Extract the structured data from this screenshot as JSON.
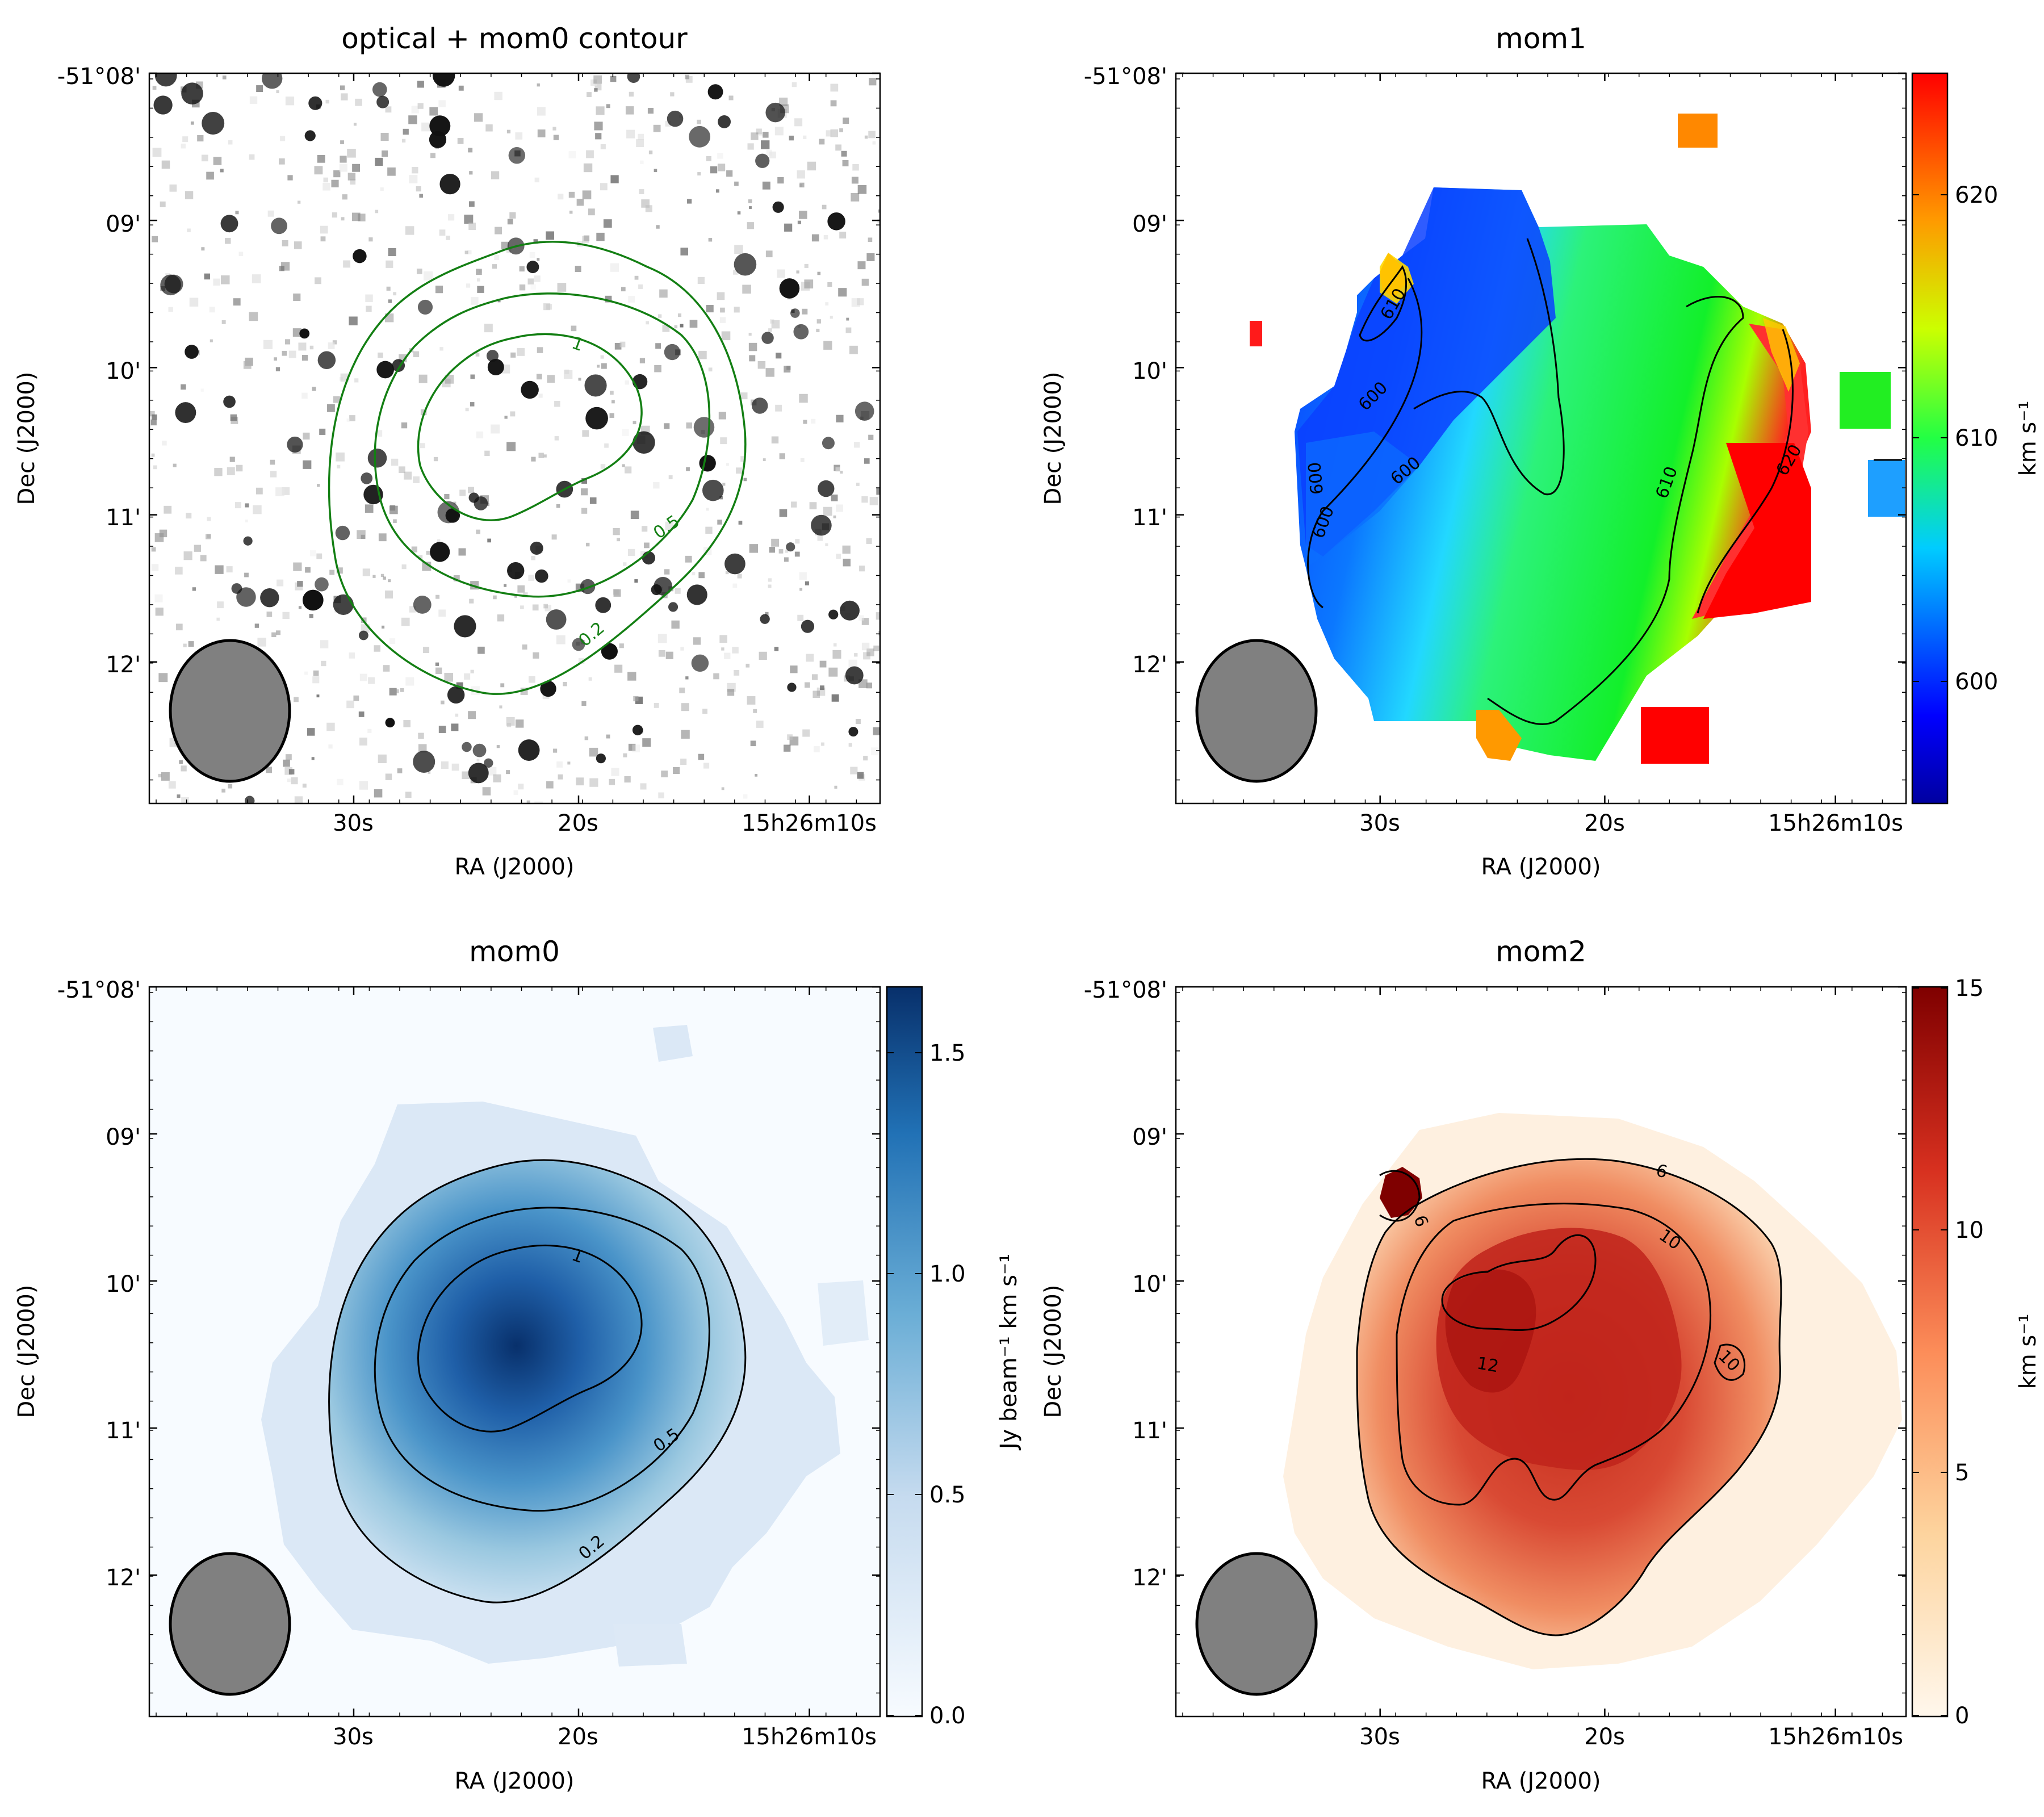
{
  "panels": [
    {
      "key": "optical",
      "title": "optical + mom0 contour",
      "xlabel": "RA (J2000)",
      "ylabel": "Dec (J2000)",
      "xticks": [
        "30s",
        "20s",
        "15h26m10s"
      ],
      "yticks": [
        "-51°08'",
        "09'",
        "10'",
        "11'",
        "12'"
      ],
      "contour_labels": [
        "1",
        "0.5",
        "0.2"
      ]
    },
    {
      "key": "mom1",
      "title": "mom1",
      "xlabel": "RA (J2000)",
      "ylabel": "Dec (J2000)",
      "xticks": [
        "30s",
        "20s",
        "15h26m10s"
      ],
      "yticks": [
        "-51°08'",
        "09'",
        "10'",
        "11'",
        "12'"
      ],
      "colorbar_label": "km s⁻¹",
      "colorbar_ticks": [
        "600",
        "610",
        "620"
      ],
      "contour_labels": [
        "610",
        "600",
        "600",
        "600",
        "600",
        "610",
        "620"
      ]
    },
    {
      "key": "mom0",
      "title": "mom0",
      "xlabel": "RA (J2000)",
      "ylabel": "Dec (J2000)",
      "xticks": [
        "30s",
        "20s",
        "15h26m10s"
      ],
      "yticks": [
        "-51°08'",
        "09'",
        "10'",
        "11'",
        "12'"
      ],
      "colorbar_label": "Jy beam⁻¹ km s⁻¹",
      "colorbar_ticks": [
        "0.0",
        "0.5",
        "1.0",
        "1.5"
      ],
      "contour_labels": [
        "1",
        "0.5",
        "0.2"
      ]
    },
    {
      "key": "mom2",
      "title": "mom2",
      "xlabel": "RA (J2000)",
      "ylabel": "Dec (J2000)",
      "xticks": [
        "30s",
        "20s",
        "15h26m10s"
      ],
      "yticks": [
        "-51°08'",
        "09'",
        "10'",
        "11'",
        "12'"
      ],
      "colorbar_label": "km s⁻¹",
      "colorbar_ticks": [
        "0",
        "5",
        "10",
        "15"
      ],
      "contour_labels": [
        "6",
        "10",
        "12",
        "10",
        "6"
      ]
    }
  ],
  "chart_data": [
    {
      "type": "heatmap",
      "title": "optical + mom0 contour",
      "xlabel": "RA (J2000)",
      "ylabel": "Dec (J2000)",
      "x_tick_labels": [
        "30s",
        "20s",
        "15h26m10s"
      ],
      "y_tick_labels": [
        "-51°08'",
        "09'",
        "10'",
        "11'",
        "12'"
      ],
      "contour_levels": [
        0.2,
        0.5,
        1
      ],
      "contour_color": "#137f13",
      "colormap": "gray_r"
    },
    {
      "type": "heatmap",
      "title": "mom1",
      "xlabel": "RA (J2000)",
      "ylabel": "Dec (J2000)",
      "x_tick_labels": [
        "30s",
        "20s",
        "15h26m10s"
      ],
      "y_tick_labels": [
        "-51°08'",
        "09'",
        "10'",
        "11'",
        "12'"
      ],
      "colorbar_label": "km s⁻¹",
      "colorbar_ticks": [
        600,
        610,
        620
      ],
      "colorbar_range": [
        595,
        625
      ],
      "contour_levels": [
        600,
        610,
        620
      ],
      "colormap": "jet"
    },
    {
      "type": "heatmap",
      "title": "mom0",
      "xlabel": "RA (J2000)",
      "ylabel": "Dec (J2000)",
      "x_tick_labels": [
        "30s",
        "20s",
        "15h26m10s"
      ],
      "y_tick_labels": [
        "-51°08'",
        "09'",
        "10'",
        "11'",
        "12'"
      ],
      "colorbar_label": "Jy beam⁻¹ km s⁻¹",
      "colorbar_ticks": [
        0.0,
        0.5,
        1.0,
        1.5
      ],
      "colorbar_range": [
        0.0,
        1.65
      ],
      "contour_levels": [
        0.2,
        0.5,
        1
      ],
      "colormap": "Blues"
    },
    {
      "type": "heatmap",
      "title": "mom2",
      "xlabel": "RA (J2000)",
      "ylabel": "Dec (J2000)",
      "x_tick_labels": [
        "30s",
        "20s",
        "15h26m10s"
      ],
      "y_tick_labels": [
        "-51°08'",
        "09'",
        "10'",
        "11'",
        "12'"
      ],
      "colorbar_label": "km s⁻¹",
      "colorbar_ticks": [
        0,
        5,
        10,
        15
      ],
      "colorbar_range": [
        0,
        15
      ],
      "contour_levels": [
        6,
        10,
        12
      ],
      "colormap": "OrRd"
    }
  ]
}
